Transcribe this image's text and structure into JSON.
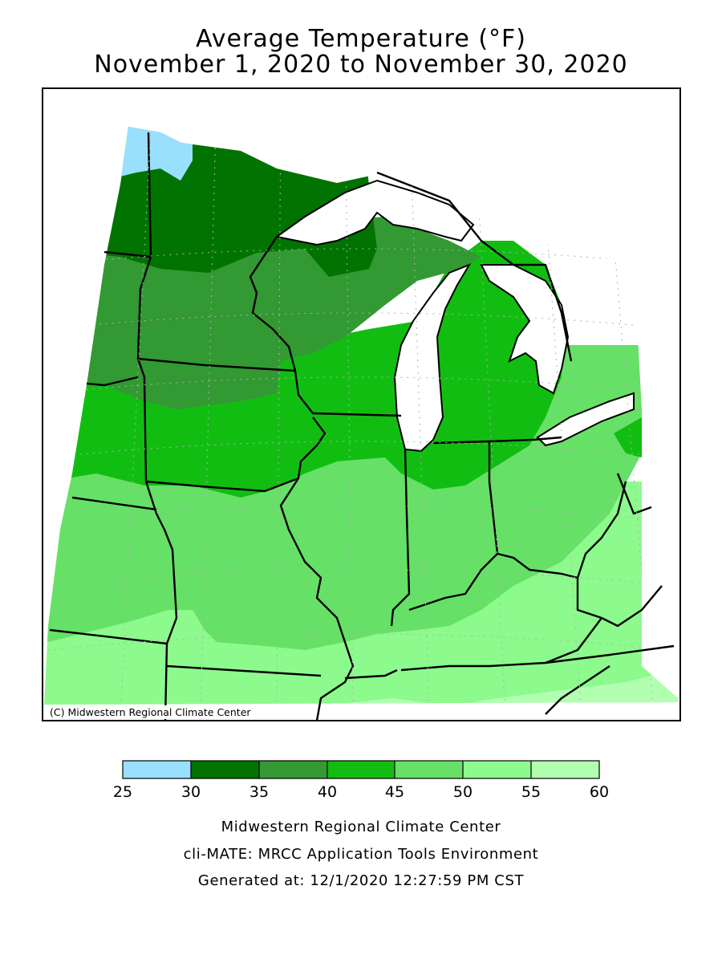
{
  "title": {
    "line1": "Average Temperature (°F)",
    "line2": "November 1, 2020 to November 30, 2020"
  },
  "map": {
    "credit": "(C) Midwestern Regional Climate Center",
    "region_colors": {
      "25-30": "#99e0ff",
      "30-35": "#007300",
      "35-40": "#339933",
      "40-45": "#12bd12",
      "45-50": "#66e066",
      "50-55": "#8cfa8c",
      "55-60": "#b2ffb2"
    }
  },
  "legend": {
    "ticks": [
      "25",
      "30",
      "35",
      "40",
      "45",
      "50",
      "55",
      "60"
    ],
    "bins": [
      {
        "range": "25-30",
        "color": "#99e0ff"
      },
      {
        "range": "30-35",
        "color": "#007300"
      },
      {
        "range": "35-40",
        "color": "#339933"
      },
      {
        "range": "40-45",
        "color": "#12bd12"
      },
      {
        "range": "45-50",
        "color": "#66e066"
      },
      {
        "range": "50-55",
        "color": "#8cfa8c"
      },
      {
        "range": "55-60",
        "color": "#b2ffb2"
      }
    ]
  },
  "footer": {
    "line1": "Midwestern Regional Climate Center",
    "line2": "cli-MATE: MRCC Application Tools Environment",
    "line3": "Generated at: 12/1/2020 12:27:59 PM CST"
  }
}
